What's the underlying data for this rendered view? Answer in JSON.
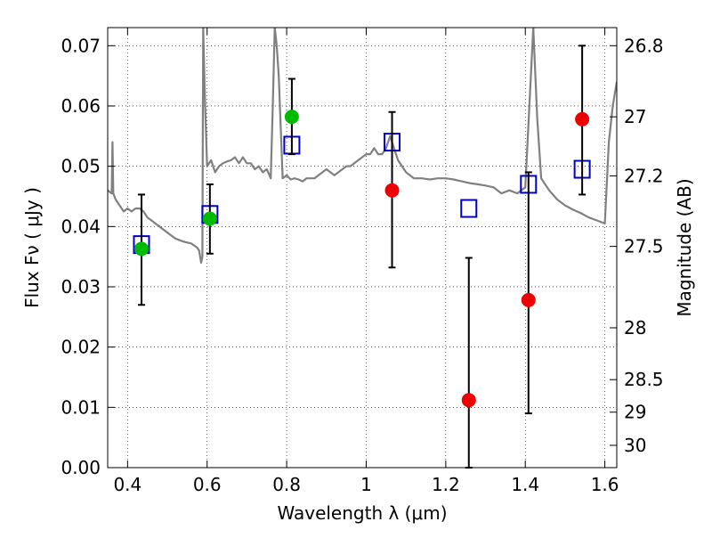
{
  "chart_data": {
    "type": "scatter",
    "xlabel": "Wavelength  λ (μm)",
    "ylabel": "Flux  Fν  ( μJy )",
    "ylabel_right": "Magnitude (AB)",
    "xlim": [
      0.35,
      1.63
    ],
    "ylim": [
      0.0,
      0.073
    ],
    "x_ticks": [
      0.4,
      0.6,
      0.8,
      1.0,
      1.2,
      1.4,
      1.6
    ],
    "x_tick_labels": [
      "0.4",
      "0.6",
      "0.8",
      "1",
      "1.2",
      "1.4",
      "1.6"
    ],
    "y_ticks": [
      0.0,
      0.01,
      0.02,
      0.03,
      0.04,
      0.05,
      0.06,
      0.07
    ],
    "y_tick_labels": [
      "0.00",
      "0.01",
      "0.02",
      "0.03",
      "0.04",
      "0.05",
      "0.06",
      "0.07"
    ],
    "right_ticks": [
      {
        "label": "26.8",
        "flux": 0.07
      },
      {
        "label": "27",
        "flux": 0.0582
      },
      {
        "label": "27.2",
        "flux": 0.0484
      },
      {
        "label": "27.5",
        "flux": 0.0367
      },
      {
        "label": "28",
        "flux": 0.0232
      },
      {
        "label": "28.5",
        "flux": 0.0146
      },
      {
        "label": "29",
        "flux": 0.0092
      },
      {
        "label": "30",
        "flux": 0.0037
      }
    ],
    "grid": true,
    "series": [
      {
        "kind": "line",
        "color": "#808080",
        "x": [
          0.35,
          0.36,
          0.362,
          0.364,
          0.37,
          0.38,
          0.39,
          0.4,
          0.41,
          0.42,
          0.43,
          0.44,
          0.45,
          0.46,
          0.47,
          0.48,
          0.49,
          0.5,
          0.52,
          0.54,
          0.56,
          0.575,
          0.58,
          0.585,
          0.588,
          0.59,
          0.595,
          0.6,
          0.61,
          0.62,
          0.63,
          0.64,
          0.65,
          0.66,
          0.67,
          0.68,
          0.69,
          0.7,
          0.71,
          0.72,
          0.73,
          0.74,
          0.75,
          0.76,
          0.765,
          0.77,
          0.775,
          0.78,
          0.79,
          0.8,
          0.81,
          0.82,
          0.83,
          0.84,
          0.85,
          0.86,
          0.87,
          0.88,
          0.89,
          0.9,
          0.91,
          0.92,
          0.93,
          0.94,
          0.95,
          0.96,
          0.97,
          0.98,
          0.99,
          1.0,
          1.01,
          1.02,
          1.03,
          1.04,
          1.05,
          1.06,
          1.08,
          1.1,
          1.12,
          1.14,
          1.16,
          1.18,
          1.2,
          1.22,
          1.24,
          1.26,
          1.28,
          1.3,
          1.32,
          1.34,
          1.36,
          1.38,
          1.4,
          1.42,
          1.43,
          1.44,
          1.46,
          1.48,
          1.5,
          1.52,
          1.54,
          1.56,
          1.58,
          1.6,
          1.61,
          1.62,
          1.63
        ],
        "y": [
          0.046,
          0.0455,
          0.054,
          0.0455,
          0.0445,
          0.0435,
          0.0425,
          0.043,
          0.0425,
          0.043,
          0.043,
          0.0425,
          0.0415,
          0.041,
          0.0405,
          0.04,
          0.0395,
          0.039,
          0.038,
          0.0375,
          0.0372,
          0.0365,
          0.036,
          0.034,
          0.035,
          0.073,
          0.06,
          0.05,
          0.051,
          0.049,
          0.05,
          0.0505,
          0.0508,
          0.051,
          0.0515,
          0.0505,
          0.0515,
          0.0505,
          0.0505,
          0.0495,
          0.05,
          0.049,
          0.0495,
          0.048,
          0.06,
          0.073,
          0.07,
          0.065,
          0.048,
          0.0485,
          0.0478,
          0.048,
          0.0478,
          0.0475,
          0.048,
          0.048,
          0.048,
          0.0485,
          0.049,
          0.0495,
          0.049,
          0.0485,
          0.049,
          0.0495,
          0.05,
          0.05,
          0.0505,
          0.051,
          0.0515,
          0.052,
          0.052,
          0.053,
          0.052,
          0.052,
          0.053,
          0.055,
          0.051,
          0.049,
          0.048,
          0.048,
          0.0478,
          0.048,
          0.048,
          0.0478,
          0.0475,
          0.0472,
          0.047,
          0.0468,
          0.0465,
          0.0455,
          0.046,
          0.0455,
          0.0465,
          0.073,
          0.058,
          0.048,
          0.046,
          0.0445,
          0.0435,
          0.0428,
          0.0422,
          0.0415,
          0.041,
          0.0405,
          0.054,
          0.06,
          0.064
        ]
      },
      {
        "kind": "open-square",
        "color": "#0000cc",
        "x": [
          0.435,
          0.607,
          0.813,
          1.065,
          1.258,
          1.408,
          1.543
        ],
        "y": [
          0.037,
          0.042,
          0.0535,
          0.054,
          0.043,
          0.047,
          0.0495
        ]
      },
      {
        "kind": "filled-circle",
        "color": "#00bb00",
        "x": [
          0.435,
          0.607,
          0.813
        ],
        "y": [
          0.0363,
          0.0413,
          0.0582
        ],
        "yerr_low": [
          0.027,
          0.0355,
          0.052
        ],
        "yerr_high": [
          0.0453,
          0.047,
          0.0645
        ]
      },
      {
        "kind": "filled-circle",
        "color": "#ee0000",
        "x": [
          1.065,
          1.258,
          1.408,
          1.543
        ],
        "y": [
          0.046,
          0.0112,
          0.0278,
          0.0578
        ],
        "yerr_low": [
          0.0332,
          0.0,
          0.009,
          0.0453
        ],
        "yerr_high": [
          0.059,
          0.0348,
          0.049,
          0.07
        ]
      }
    ]
  }
}
